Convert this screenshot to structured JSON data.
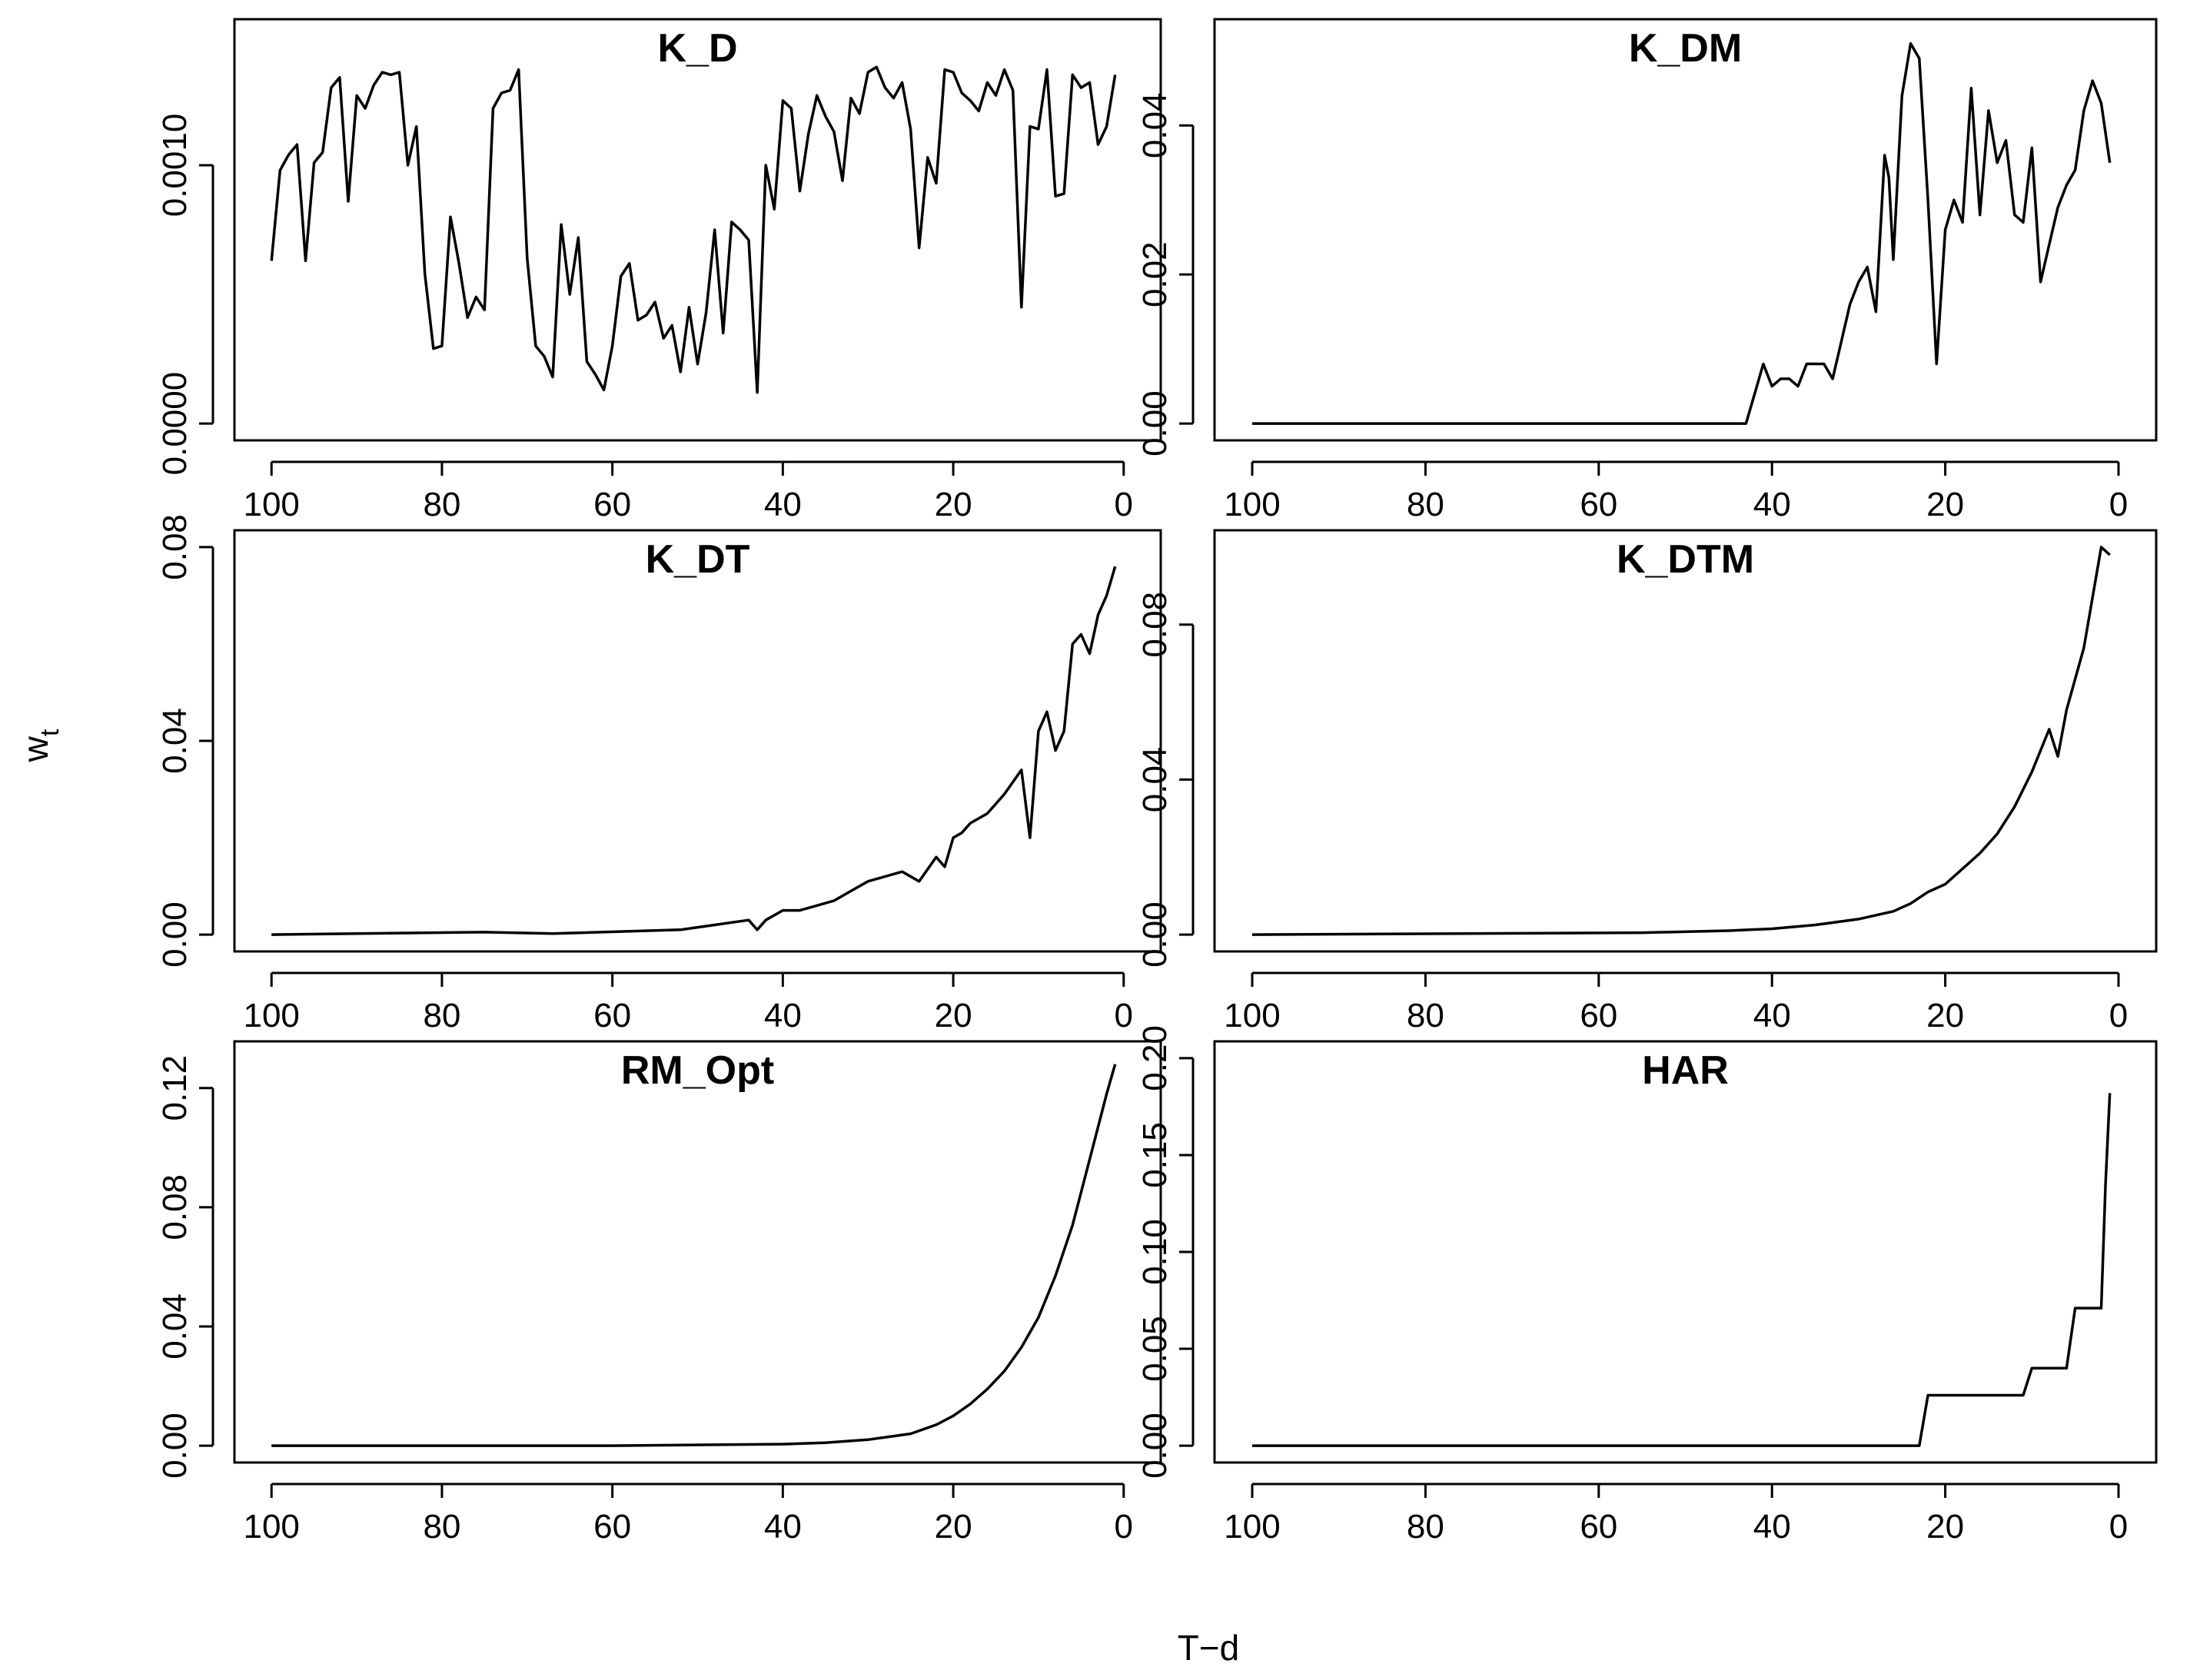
{
  "figure": {
    "ylabel": "w",
    "ylabel_sub": "t",
    "xlabel": "T−d"
  },
  "chart_data": [
    {
      "type": "line",
      "title": "K_D",
      "xlabel": "",
      "ylabel": "",
      "x_reversed": true,
      "xlim": [
        100,
        0
      ],
      "xticks": [
        100,
        80,
        60,
        40,
        20,
        0
      ],
      "ylim": [
        0,
        0.0015
      ],
      "yticks": [
        0.0,
        0.001
      ],
      "ytick_labels": [
        "0.0000",
        "0.0010"
      ],
      "series": [
        {
          "x": [
            100,
            99,
            98,
            97,
            96,
            95,
            94,
            93,
            92,
            91,
            90,
            89,
            88,
            87,
            86,
            85,
            84,
            83,
            82,
            81,
            80,
            79,
            78,
            77,
            76,
            75,
            74,
            73,
            72,
            71,
            70,
            69,
            68,
            67,
            66,
            65,
            64,
            63,
            62,
            61,
            60,
            59,
            58,
            57,
            56,
            55,
            54,
            53,
            52,
            51,
            50,
            49,
            48,
            47,
            46,
            45,
            44,
            43,
            42,
            41,
            40,
            39,
            38,
            37,
            36,
            35,
            34,
            33,
            32,
            31,
            30,
            29,
            28,
            27,
            26,
            25,
            24,
            23,
            22,
            21,
            20,
            19,
            18,
            17,
            16,
            15,
            14,
            13,
            12,
            11,
            10,
            9,
            8,
            7,
            6,
            5,
            4,
            3,
            2,
            1
          ],
          "values": [
            0.00063,
            0.00098,
            0.00104,
            0.00108,
            0.00063,
            0.00101,
            0.00105,
            0.0013,
            0.00134,
            0.00086,
            0.00127,
            0.00122,
            0.00131,
            0.00136,
            0.00135,
            0.00136,
            0.001,
            0.00115,
            0.00058,
            0.00029,
            0.0003,
            0.0008,
            0.00062,
            0.00041,
            0.00049,
            0.00044,
            0.00122,
            0.00128,
            0.00129,
            0.00137,
            0.00064,
            0.0003,
            0.00026,
            0.00018,
            0.00077,
            0.0005,
            0.00072,
            0.00024,
            0.00019,
            0.00013,
            0.0003,
            0.00057,
            0.00062,
            0.0004,
            0.00042,
            0.00047,
            0.00033,
            0.00038,
            0.0002,
            0.00045,
            0.00023,
            0.00043,
            0.00075,
            0.00035,
            0.00078,
            0.00075,
            0.00071,
            0.00012,
            0.001,
            0.00083,
            0.00125,
            0.00122,
            0.0009,
            0.00112,
            0.00127,
            0.00119,
            0.00113,
            0.00094,
            0.00126,
            0.0012,
            0.00136,
            0.00138,
            0.0013,
            0.00126,
            0.00132,
            0.00114,
            0.00068,
            0.00103,
            0.00093,
            0.00137,
            0.00136,
            0.00128,
            0.00125,
            0.00121,
            0.00132,
            0.00127,
            0.00137,
            0.00129,
            0.00045,
            0.00115,
            0.00114,
            0.00137,
            0.00088,
            0.00089,
            0.00135,
            0.0013,
            0.00132,
            0.00108,
            0.00115,
            0.00135
          ]
        }
      ]
    },
    {
      "type": "line",
      "title": "K_DM",
      "xlabel": "",
      "ylabel": "",
      "x_reversed": true,
      "xlim": [
        100,
        0
      ],
      "xticks": [
        100,
        80,
        60,
        40,
        20,
        0
      ],
      "ylim": [
        0,
        0.052
      ],
      "yticks": [
        0.0,
        0.02,
        0.04
      ],
      "ytick_labels": [
        "0.00",
        "0.02",
        "0.04"
      ],
      "series": [
        {
          "x": [
            100,
            43,
            42,
            41,
            40,
            39,
            38,
            37,
            36,
            35,
            34,
            33,
            32,
            31,
            30,
            29,
            28,
            27,
            26.5,
            26,
            25,
            24,
            23,
            22,
            21,
            20,
            19,
            18,
            17,
            16,
            15,
            14,
            13,
            12,
            11,
            10,
            9,
            8,
            7,
            6,
            5,
            4,
            3,
            2,
            1
          ],
          "values": [
            0,
            0,
            0.004,
            0.008,
            0.005,
            0.006,
            0.006,
            0.005,
            0.008,
            0.008,
            0.008,
            0.006,
            0.011,
            0.016,
            0.019,
            0.021,
            0.015,
            0.036,
            0.033,
            0.022,
            0.044,
            0.051,
            0.049,
            0.03,
            0.008,
            0.026,
            0.03,
            0.027,
            0.045,
            0.028,
            0.042,
            0.035,
            0.038,
            0.028,
            0.027,
            0.037,
            0.019,
            0.024,
            0.029,
            0.032,
            0.034,
            0.042,
            0.046,
            0.043,
            0.035
          ]
        }
      ]
    },
    {
      "type": "line",
      "title": "K_DT",
      "xlabel": "",
      "ylabel": "",
      "x_reversed": true,
      "xlim": [
        100,
        0
      ],
      "xticks": [
        100,
        80,
        60,
        40,
        20,
        0
      ],
      "ylim": [
        0,
        0.08
      ],
      "yticks": [
        0.0,
        0.04,
        0.08
      ],
      "ytick_labels": [
        "0.00",
        "0.04",
        "0.08"
      ],
      "series": [
        {
          "x": [
            100,
            75,
            67,
            52,
            50,
            48,
            46,
            44,
            43,
            42,
            40,
            38,
            36,
            34,
            32,
            30,
            28,
            26,
            24,
            22,
            21,
            20,
            19,
            18,
            16,
            14,
            12,
            11,
            10,
            9,
            8,
            7,
            6,
            5,
            4,
            3,
            2,
            1
          ],
          "values": [
            0,
            0.0005,
            0.0002,
            0.001,
            0.0015,
            0.002,
            0.0025,
            0.003,
            0.001,
            0.003,
            0.005,
            0.005,
            0.006,
            0.007,
            0.009,
            0.011,
            0.012,
            0.013,
            0.011,
            0.016,
            0.014,
            0.02,
            0.021,
            0.023,
            0.025,
            0.029,
            0.034,
            0.02,
            0.042,
            0.046,
            0.038,
            0.042,
            0.06,
            0.062,
            0.058,
            0.066,
            0.07,
            0.076
          ]
        }
      ]
    },
    {
      "type": "line",
      "title": "K_DTM",
      "xlabel": "",
      "ylabel": "",
      "x_reversed": true,
      "xlim": [
        100,
        0
      ],
      "xticks": [
        100,
        80,
        60,
        40,
        20,
        0
      ],
      "ylim": [
        0,
        0.1
      ],
      "yticks": [
        0.0,
        0.04,
        0.08
      ],
      "ytick_labels": [
        "0.00",
        "0.04",
        "0.08"
      ],
      "series": [
        {
          "x": [
            100,
            55,
            45,
            40,
            35,
            30,
            26,
            24,
            22,
            20,
            18,
            16,
            14,
            12,
            10,
            8,
            7,
            6,
            4,
            2,
            1
          ],
          "values": [
            0,
            0.0005,
            0.001,
            0.0015,
            0.0025,
            0.004,
            0.006,
            0.008,
            0.011,
            0.013,
            0.017,
            0.021,
            0.026,
            0.033,
            0.042,
            0.053,
            0.046,
            0.058,
            0.074,
            0.1,
            0.098
          ]
        }
      ]
    },
    {
      "type": "line",
      "title": "RM_Opt",
      "xlabel": "",
      "ylabel": "",
      "x_reversed": true,
      "xlim": [
        100,
        0
      ],
      "xticks": [
        100,
        80,
        60,
        40,
        20,
        0
      ],
      "ylim": [
        0,
        0.13
      ],
      "yticks": [
        0.0,
        0.04,
        0.08,
        0.12
      ],
      "ytick_labels": [
        "0.00",
        "0.04",
        "0.08",
        "0.12"
      ],
      "series": [
        {
          "x": [
            100,
            60,
            40,
            35,
            30,
            25,
            22,
            20,
            18,
            16,
            14,
            12,
            10,
            8,
            6,
            4,
            2,
            1
          ],
          "values": [
            0,
            0,
            0.0005,
            0.001,
            0.002,
            0.004,
            0.007,
            0.01,
            0.014,
            0.019,
            0.025,
            0.033,
            0.043,
            0.057,
            0.074,
            0.096,
            0.118,
            0.128
          ]
        }
      ]
    },
    {
      "type": "line",
      "title": "HAR",
      "xlabel": "",
      "ylabel": "",
      "x_reversed": true,
      "xlim": [
        100,
        0
      ],
      "xticks": [
        100,
        80,
        60,
        40,
        20,
        0
      ],
      "ylim": [
        0,
        0.2
      ],
      "yticks": [
        0.0,
        0.05,
        0.1,
        0.15,
        0.2
      ],
      "ytick_labels": [
        "0.00",
        "0.05",
        "0.10",
        "0.15",
        "0.20"
      ],
      "series": [
        {
          "x": [
            100,
            23,
            22,
            11,
            10,
            6,
            5,
            2,
            1.5,
            1
          ],
          "values": [
            0,
            0,
            0.026,
            0.026,
            0.04,
            0.04,
            0.071,
            0.071,
            0.135,
            0.182
          ]
        }
      ]
    }
  ]
}
